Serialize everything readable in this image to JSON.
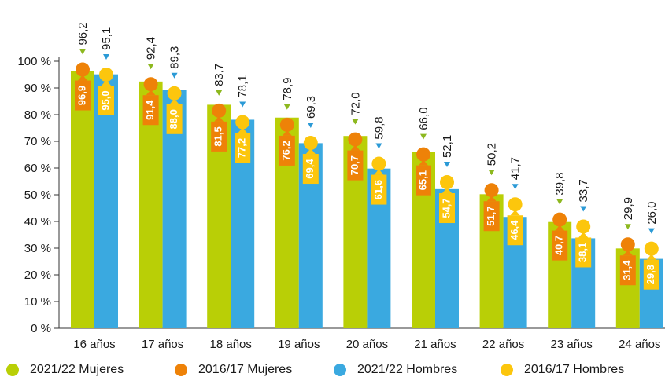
{
  "chart_data": {
    "type": "bar",
    "categories": [
      "16 años",
      "17 años",
      "18 años",
      "19 años",
      "20 años",
      "21 años",
      "22 años",
      "23 años",
      "24 años"
    ],
    "y_ticks": [
      "0 %",
      "10 %",
      "20 %",
      "30 %",
      "40 %",
      "50 %",
      "60 %",
      "70 %",
      "80 %",
      "90 %",
      "100 %"
    ],
    "ylim": [
      0,
      100
    ],
    "series": [
      {
        "name": "2021/22 Mujeres",
        "kind": "bar",
        "color": "#b9cf06",
        "marker_color": "#8db81f",
        "values": [
          96.2,
          92.4,
          83.7,
          78.9,
          72.0,
          66.0,
          50.2,
          39.8,
          29.9
        ],
        "labels": [
          "96,2",
          "92,4",
          "83,7",
          "78,9",
          "72,0",
          "66,0",
          "50,2",
          "39,8",
          "29,9"
        ]
      },
      {
        "name": "2016/17 Mujeres",
        "kind": "dot",
        "color": "#ee8208",
        "values": [
          96.9,
          91.4,
          81.5,
          76.2,
          70.7,
          65.1,
          51.7,
          40.7,
          31.4
        ],
        "labels": [
          "96,9",
          "91,4",
          "81,5",
          "76,2",
          "70,7",
          "65,1",
          "51,7",
          "40,7",
          "31,4"
        ]
      },
      {
        "name": "2021/22 Hombres",
        "kind": "bar",
        "color": "#3aa9e0",
        "marker_color": "#2b9ad6",
        "values": [
          95.1,
          89.3,
          78.1,
          69.3,
          59.8,
          52.1,
          41.7,
          33.7,
          26.0
        ],
        "labels": [
          "95,1",
          "89,3",
          "78,1",
          "69,3",
          "59,8",
          "52,1",
          "41,7",
          "33,7",
          "26,0"
        ]
      },
      {
        "name": "2016/17 Hombres",
        "kind": "dot",
        "color": "#fcc60d",
        "values": [
          95.0,
          88.0,
          77.2,
          69.4,
          61.6,
          54.7,
          46.4,
          38.1,
          29.8
        ],
        "labels": [
          "95,0",
          "88,0",
          "77,2",
          "69,4",
          "61,6",
          "54,7",
          "46,4",
          "38,1",
          "29,8"
        ]
      }
    ],
    "legend_position": "bottom",
    "grid": false
  }
}
